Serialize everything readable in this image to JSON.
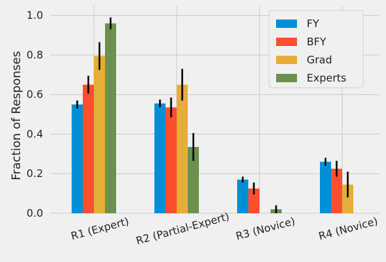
{
  "chart_data": {
    "type": "bar",
    "title": "",
    "xlabel": "",
    "ylabel": "Fraction of Responses",
    "ylim": [
      0,
      1.05
    ],
    "yticks": [
      "0.0",
      "0.2",
      "0.4",
      "0.6",
      "0.8",
      "1.0"
    ],
    "categories": [
      "R1 (Expert)",
      "R2 (Partial-Expert)",
      "R3 (Novice)",
      "R4 (Novice)"
    ],
    "series": [
      {
        "name": "FY",
        "color": "#008fd5",
        "values": [
          0.55,
          0.555,
          0.17,
          0.26
        ],
        "err": [
          0.02,
          0.02,
          0.015,
          0.02
        ]
      },
      {
        "name": "BFY",
        "color": "#fc4f30",
        "values": [
          0.65,
          0.535,
          0.125,
          0.225
        ],
        "err": [
          0.045,
          0.05,
          0.03,
          0.04
        ]
      },
      {
        "name": "Grad",
        "color": "#e5ae38",
        "values": [
          0.795,
          0.65,
          0.0,
          0.145
        ],
        "err": [
          0.07,
          0.08,
          0.0,
          0.065
        ]
      },
      {
        "name": "Experts",
        "color": "#6d904f",
        "values": [
          0.96,
          0.335,
          0.02,
          0.0
        ],
        "err": [
          0.03,
          0.07,
          0.02,
          0.0
        ]
      }
    ],
    "grid": true,
    "legend_position": "top-right"
  }
}
